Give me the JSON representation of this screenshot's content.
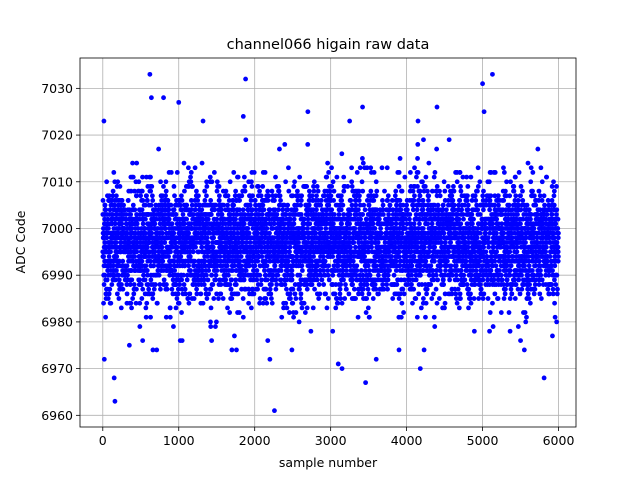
{
  "chart_data": {
    "type": "scatter",
    "title": "channel066 higain raw data",
    "xlabel": "sample number",
    "ylabel": "ADC Code",
    "xlim": [
      -300,
      6230
    ],
    "ylim": [
      6957.5,
      7036.5
    ],
    "xticks": [
      0,
      1000,
      2000,
      3000,
      4000,
      5000,
      6000
    ],
    "yticks": [
      6960,
      6970,
      6980,
      6990,
      7000,
      7010,
      7020,
      7030
    ],
    "grid": true,
    "marker_color": "#0000ff",
    "n_samples": 6000,
    "central_value": 6997,
    "typical_spread": [
      6978,
      7016
    ],
    "outliers": [
      {
        "x": 15,
        "y": 7023
      },
      {
        "x": 20,
        "y": 6972
      },
      {
        "x": 150,
        "y": 6968
      },
      {
        "x": 160,
        "y": 6963
      },
      {
        "x": 620,
        "y": 7033
      },
      {
        "x": 640,
        "y": 7028
      },
      {
        "x": 660,
        "y": 6974
      },
      {
        "x": 710,
        "y": 6974
      },
      {
        "x": 800,
        "y": 7028
      },
      {
        "x": 1000,
        "y": 7027
      },
      {
        "x": 1020,
        "y": 6976
      },
      {
        "x": 1320,
        "y": 7023
      },
      {
        "x": 1700,
        "y": 6974
      },
      {
        "x": 1760,
        "y": 6974
      },
      {
        "x": 1850,
        "y": 7024
      },
      {
        "x": 1880,
        "y": 7032
      },
      {
        "x": 2200,
        "y": 6972
      },
      {
        "x": 2260,
        "y": 6961
      },
      {
        "x": 2490,
        "y": 6974
      },
      {
        "x": 2700,
        "y": 7025
      },
      {
        "x": 3100,
        "y": 6971
      },
      {
        "x": 3150,
        "y": 6970
      },
      {
        "x": 3250,
        "y": 7023
      },
      {
        "x": 3420,
        "y": 7026
      },
      {
        "x": 3460,
        "y": 6967
      },
      {
        "x": 3600,
        "y": 6972
      },
      {
        "x": 3900,
        "y": 6974
      },
      {
        "x": 4150,
        "y": 7023
      },
      {
        "x": 4180,
        "y": 6970
      },
      {
        "x": 4230,
        "y": 6974
      },
      {
        "x": 4400,
        "y": 7026
      },
      {
        "x": 5000,
        "y": 7031
      },
      {
        "x": 5020,
        "y": 7025
      },
      {
        "x": 5130,
        "y": 7033
      },
      {
        "x": 5500,
        "y": 6976
      },
      {
        "x": 5550,
        "y": 6974
      },
      {
        "x": 5810,
        "y": 6968
      },
      {
        "x": 5920,
        "y": 6977
      }
    ]
  }
}
